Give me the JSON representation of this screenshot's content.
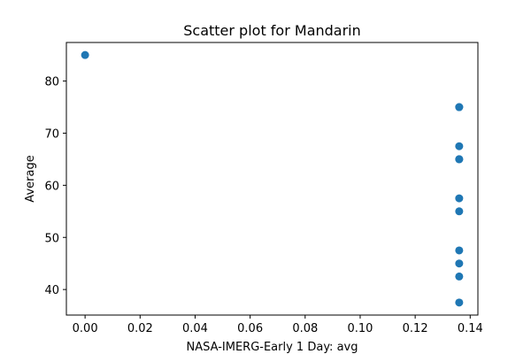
{
  "chart_data": {
    "type": "scatter",
    "title": "Scatter plot for Mandarin",
    "xlabel": "NASA-IMERG-Early 1 Day: avg",
    "ylabel": "Average",
    "xlim": [
      -0.0068,
      0.1428
    ],
    "ylim": [
      35.1,
      87.4
    ],
    "xticks": [
      0.0,
      0.02,
      0.04,
      0.06,
      0.08,
      0.1,
      0.12,
      0.14
    ],
    "xtick_labels": [
      "0.00",
      "0.02",
      "0.04",
      "0.06",
      "0.08",
      "0.10",
      "0.12",
      "0.14"
    ],
    "yticks": [
      40,
      50,
      60,
      70,
      80
    ],
    "ytick_labels": [
      "40",
      "50",
      "60",
      "70",
      "80"
    ],
    "grid": false,
    "marker_color": "#1f77b4",
    "series": [
      {
        "x": [
          0.0,
          0.136,
          0.136,
          0.136,
          0.136,
          0.136,
          0.136,
          0.136,
          0.136,
          0.136,
          0.136,
          0.136
        ],
        "y": [
          85,
          75,
          67.5,
          65,
          57.5,
          55,
          47.5,
          45,
          42.5,
          37.5,
          75,
          65
        ]
      }
    ]
  }
}
